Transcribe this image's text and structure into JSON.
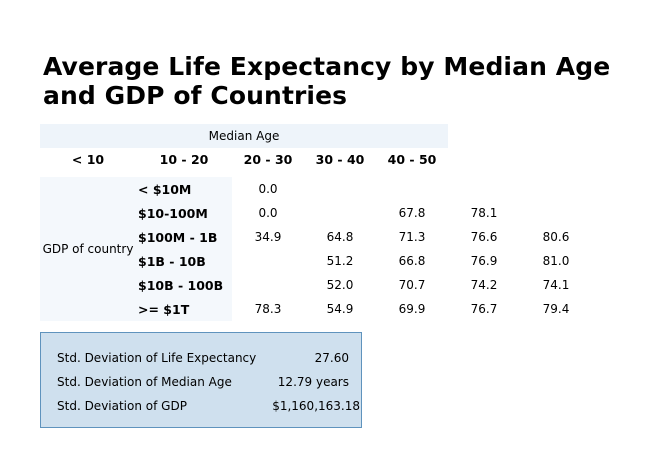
{
  "title": "Average Life Expectancy by Median Age and GDP of Countries",
  "chart_data": {
    "type": "table",
    "title": "Average Life Expectancy by Median Age and GDP of Countries",
    "column_axis_label": "Median Age",
    "row_axis_label": "GDP of country",
    "columns": [
      "< 10",
      "10 - 20",
      "20 - 30",
      "30 - 40",
      "40 - 50"
    ],
    "rows": [
      "< $10M",
      "$10-100M",
      "$100M - 1B",
      "$1B - 10B",
      "$10B - 100B",
      ">= $1T"
    ],
    "values": [
      [
        "0.0",
        "",
        "",
        "",
        ""
      ],
      [
        "0.0",
        "",
        "67.8",
        "78.1",
        ""
      ],
      [
        "34.9",
        "64.8",
        "71.3",
        "76.6",
        "80.6"
      ],
      [
        "",
        "51.2",
        "66.8",
        "76.9",
        "81.0"
      ],
      [
        "",
        "52.0",
        "70.7",
        "74.2",
        "74.1"
      ],
      [
        "78.3",
        "54.9",
        "69.9",
        "76.7",
        "79.4"
      ]
    ]
  },
  "stats": [
    {
      "label": "Std. Deviation of Life Expectancy",
      "value": "27.60"
    },
    {
      "label": "Std. Deviation of Median Age",
      "value": "12.79 years"
    },
    {
      "label": "Std. Deviation of GDP",
      "value": "$1,160,163.18"
    }
  ],
  "colors": {
    "header_band": "#eef4fa",
    "grid_band": "#f4f8fc",
    "stats_background": "#cfe0ee",
    "stats_border": "#5f93bd"
  }
}
